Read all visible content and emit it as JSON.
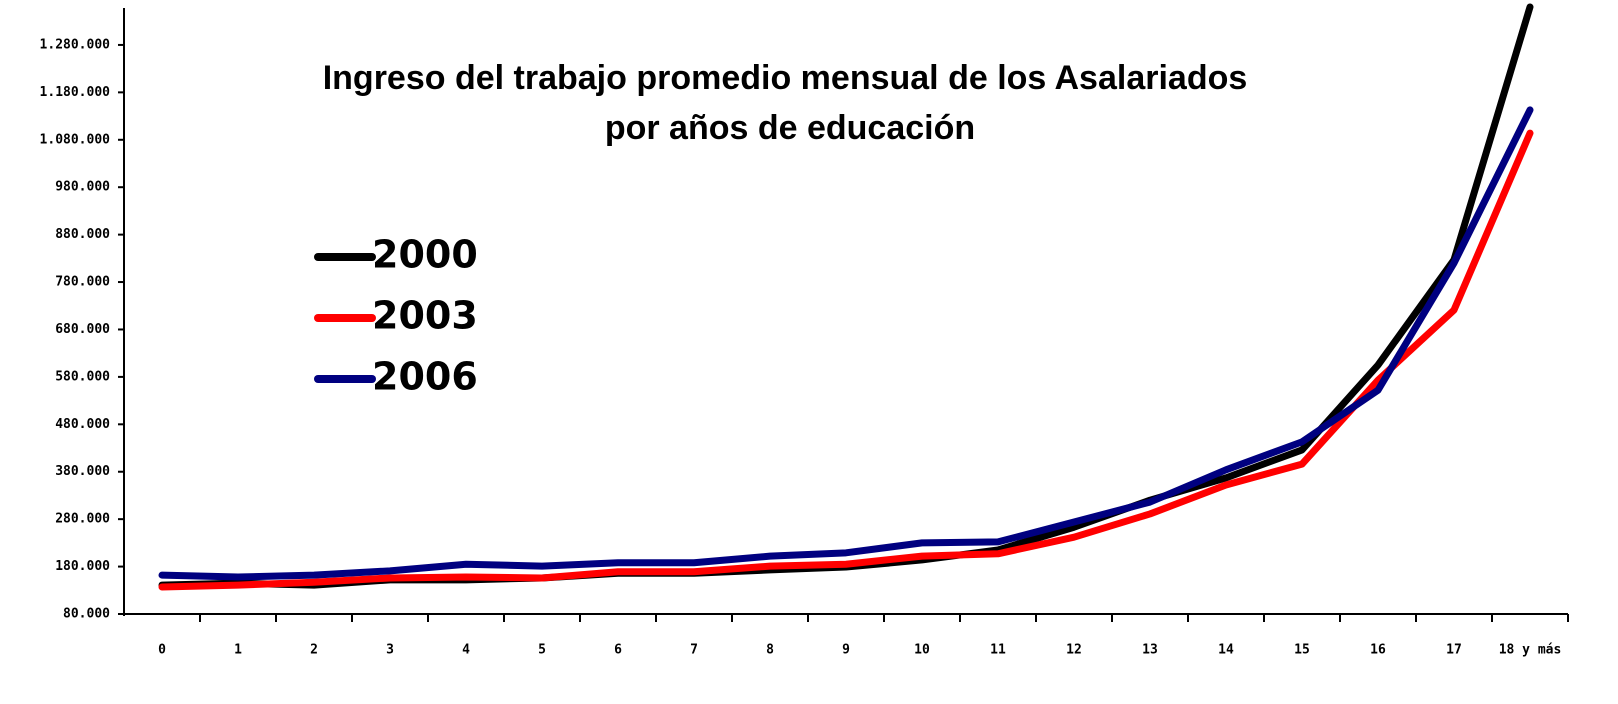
{
  "chart_data": {
    "type": "line",
    "title": "Ingreso del trabajo promedio mensual de los Asalariados",
    "subtitle": "por años de educación",
    "categories": [
      "0",
      "1",
      "2",
      "3",
      "4",
      "5",
      "6",
      "7",
      "8",
      "9",
      "10",
      "11",
      "12",
      "13",
      "14",
      "15",
      "16",
      "17",
      "18 y más"
    ],
    "series": [
      {
        "name": "2000",
        "color": "#000000",
        "values": [
          141000,
          145000,
          141000,
          152000,
          152000,
          156000,
          166000,
          166000,
          173000,
          179000,
          194000,
          215000,
          263000,
          320000,
          367000,
          426000,
          605000,
          827000,
          1360000
        ]
      },
      {
        "name": "2003",
        "color": "#ff0000",
        "values": [
          137000,
          141000,
          147000,
          156000,
          158000,
          156000,
          169000,
          169000,
          181000,
          185000,
          202000,
          207000,
          242000,
          291000,
          352000,
          396000,
          573000,
          721000,
          1094000
        ]
      },
      {
        "name": "2006",
        "color": "#000080",
        "values": [
          162000,
          158000,
          162000,
          171000,
          185000,
          181000,
          188000,
          188000,
          202000,
          209000,
          230000,
          232000,
          274000,
          316000,
          384000,
          443000,
          552000,
          820000,
          1143000
        ]
      }
    ],
    "ylim": [
      80000,
      1360000
    ],
    "yticks": [
      {
        "value": 80000,
        "label": "80.000"
      },
      {
        "value": 180000,
        "label": "180.000"
      },
      {
        "value": 280000,
        "label": "280.000"
      },
      {
        "value": 380000,
        "label": "380.000"
      },
      {
        "value": 480000,
        "label": "480.000"
      },
      {
        "value": 580000,
        "label": "580.000"
      },
      {
        "value": 680000,
        "label": "680.000"
      },
      {
        "value": 780000,
        "label": "780.000"
      },
      {
        "value": 880000,
        "label": "880.000"
      },
      {
        "value": 980000,
        "label": "980.000"
      },
      {
        "value": 1080000,
        "label": "1.080.000"
      },
      {
        "value": 1180000,
        "label": "1.180.000"
      },
      {
        "value": 1280000,
        "label": "1.280.000"
      }
    ],
    "grid": false,
    "legend": "upper left"
  }
}
